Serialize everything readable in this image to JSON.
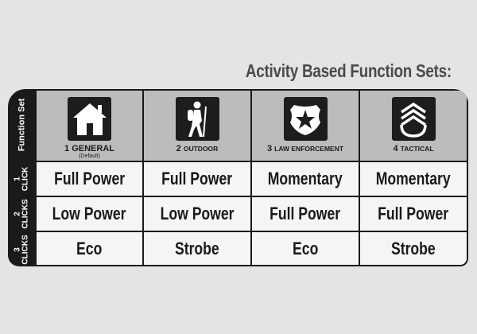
{
  "title": "Activity Based Function Sets:",
  "side_labels": {
    "header": "Function Set",
    "row1": "1 CLICK",
    "row2": "2 CLICKS",
    "row3": "3 CLICKS"
  },
  "columns": [
    {
      "num": "1",
      "name": "GENERAL",
      "sub": "(Default)",
      "icon": "house-icon"
    },
    {
      "num": "2",
      "name": "OUTDOOR",
      "icon": "hiker-icon"
    },
    {
      "num": "3",
      "name": "LAW ENFORCEMENT",
      "icon": "police-badge-icon"
    },
    {
      "num": "4",
      "name": "TACTICAL",
      "icon": "sergeant-chevron-icon"
    }
  ],
  "rows": [
    [
      "Full Power",
      "Full Power",
      "Momentary",
      "Momentary"
    ],
    [
      "Low Power",
      "Low Power",
      "Full Power",
      "Full Power"
    ],
    [
      "Eco",
      "Strobe",
      "Eco",
      "Strobe"
    ]
  ],
  "colors": {
    "frame": "#1a1a1a",
    "header_bg": "#bcbcbc",
    "cell_bg": "#f5f5f5",
    "page_bg": "#e4e4e4"
  }
}
